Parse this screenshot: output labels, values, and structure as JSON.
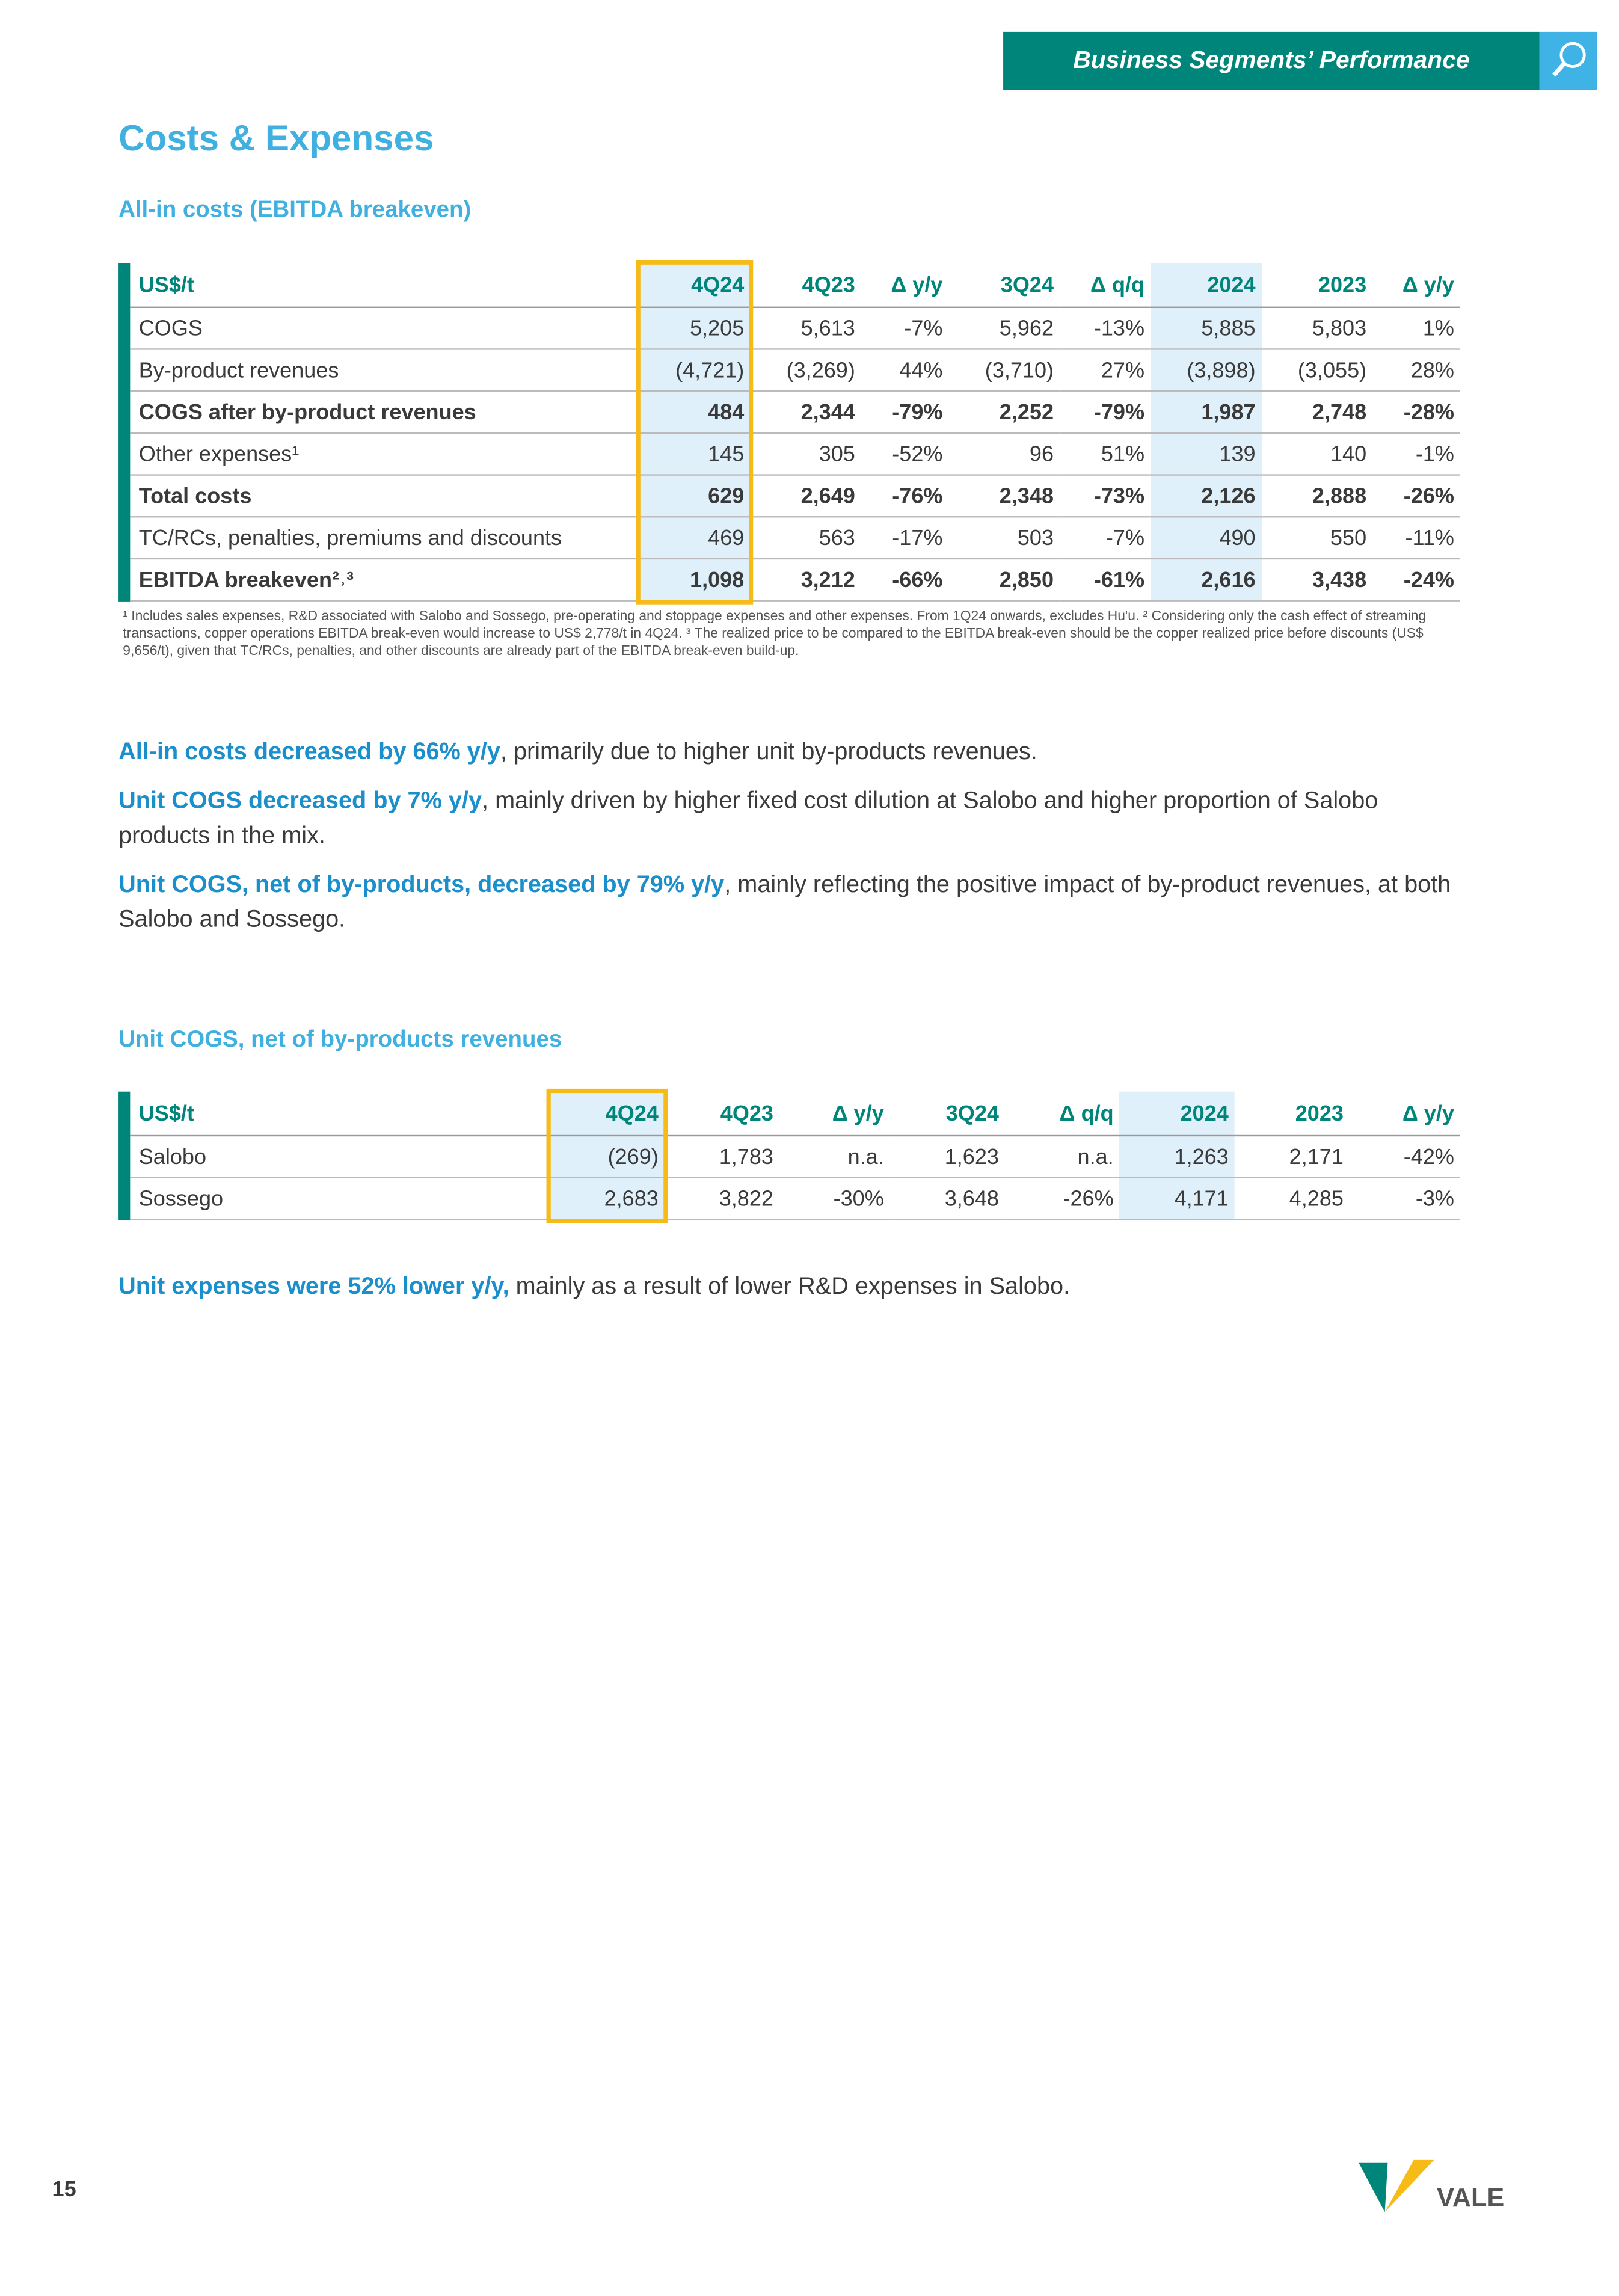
{
  "header": {
    "title": "Business Segments’ Performance"
  },
  "title": "Costs & Expenses",
  "section1": {
    "heading": "All-in costs (EBITDA breakeven)"
  },
  "table1": {
    "columns": [
      "US$/t",
      "4Q24",
      "4Q23",
      "Δ y/y",
      "3Q24",
      "Δ q/q",
      "2024",
      "2023",
      "Δ y/y"
    ],
    "rows": [
      {
        "bold": false,
        "cells": [
          "COGS",
          "5,205",
          "5,613",
          "-7%",
          "5,962",
          "-13%",
          "5,885",
          "5,803",
          "1%"
        ]
      },
      {
        "bold": false,
        "cells": [
          "By-product revenues",
          "(4,721)",
          "(3,269)",
          "44%",
          "(3,710)",
          "27%",
          "(3,898)",
          "(3,055)",
          "28%"
        ]
      },
      {
        "bold": true,
        "cells": [
          "COGS after by-product revenues",
          "484",
          "2,344",
          "-79%",
          "2,252",
          "-79%",
          "1,987",
          "2,748",
          "-28%"
        ]
      },
      {
        "bold": false,
        "cells": [
          "Other expenses¹",
          "145",
          "305",
          "-52%",
          "96",
          "51%",
          "139",
          "140",
          "-1%"
        ]
      },
      {
        "bold": true,
        "cells": [
          "Total costs",
          "629",
          "2,649",
          "-76%",
          "2,348",
          "-73%",
          "2,126",
          "2,888",
          "-26%"
        ]
      },
      {
        "bold": false,
        "cells": [
          "TC/RCs, penalties, premiums and discounts",
          "469",
          "563",
          "-17%",
          "503",
          "-7%",
          "490",
          "550",
          "-11%"
        ]
      },
      {
        "bold": true,
        "cells": [
          "EBITDA breakeven²˒³",
          "1,098",
          "3,212",
          "-66%",
          "2,850",
          "-61%",
          "2,616",
          "3,438",
          "-24%"
        ]
      }
    ]
  },
  "footnote": "¹ Includes sales expenses, R&D associated with Salobo and Sossego, pre-operating and stoppage expenses and other expenses. From 1Q24 onwards, excludes Hu'u. ² Considering only the cash effect of streaming transactions, copper operations EBITDA break-even would increase to US$ 2,778/t in 4Q24. ³ The realized price to be compared to the EBITDA break-even should be the copper realized price before discounts (US$ 9,656/t), given that TC/RCs, penalties, and other discounts are already part of the EBITDA break-even build-up.",
  "paragraphs1": [
    {
      "lead": "All-in costs decreased by 66% y/y",
      "rest": ", primarily due to higher unit by-products revenues."
    },
    {
      "lead": "Unit COGS decreased by 7% y/y",
      "rest": ", mainly driven by higher fixed cost dilution at Salobo and higher proportion of Salobo products in the mix."
    },
    {
      "lead": "Unit COGS, net of by-products, decreased by 79% y/y",
      "rest": ", mainly reflecting the positive impact of by-product revenues, at both Salobo and Sossego."
    }
  ],
  "section2": {
    "heading": "Unit COGS, net of by-products revenues"
  },
  "table2": {
    "columns": [
      "US$/t",
      "4Q24",
      "4Q23",
      "Δ y/y",
      "3Q24",
      "Δ q/q",
      "2024",
      "2023",
      "Δ y/y"
    ],
    "rows": [
      {
        "bold": false,
        "cells": [
          "Salobo",
          "(269)",
          "1,783",
          "n.a.",
          "1,623",
          "n.a.",
          "1,263",
          "2,171",
          "-42%"
        ]
      },
      {
        "bold": false,
        "cells": [
          "Sossego",
          "2,683",
          "3,822",
          "-30%",
          "3,648",
          "-26%",
          "4,171",
          "4,285",
          "-3%"
        ]
      }
    ]
  },
  "paragraphs2": [
    {
      "lead": "Unit expenses were 52% lower y/y,",
      "rest": " mainly as a result of lower R&D expenses in Salobo."
    }
  ],
  "page_number": "15",
  "logo": "VALE"
}
